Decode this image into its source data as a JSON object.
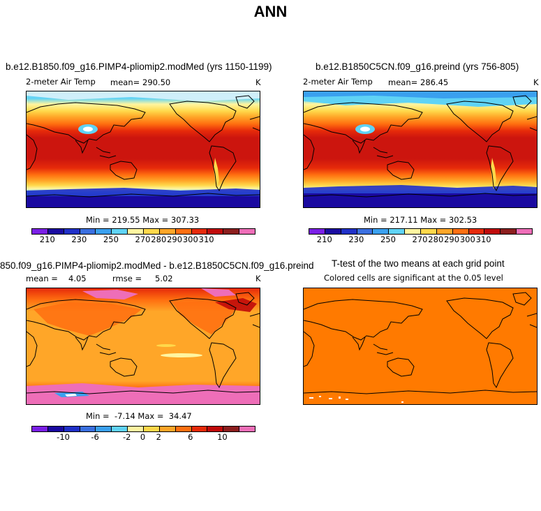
{
  "main_title": "ANN",
  "units": "K",
  "panels": {
    "p1": {
      "title": "b.e12.B1850.f09_g16.PIMP4-pliomip2.modMed (yrs 1150-1199)",
      "variable": "2-meter Air Temp",
      "mean_label": "mean=",
      "mean_value": "290.50",
      "units": "K",
      "minmax": "Min = 219.55 Max = 307.33"
    },
    "p2": {
      "title": "b.e12.B1850C5CN.f09_g16.preind (yrs 756-805)",
      "variable": "2-meter Air Temp",
      "mean_label": "mean=",
      "mean_value": "286.45",
      "units": "K",
      "minmax": "Min = 217.11 Max = 302.53"
    },
    "p3": {
      "title": "850.f09_g16.PIMP4-pliomip2.modMed - b.e12.B1850C5CN.f09_g16.preind",
      "mean_label": "mean =",
      "mean_value": "4.05",
      "rmse_label": "rmse =",
      "rmse_value": "5.02",
      "units": "K",
      "minmax": "Min =  -7.14 Max =  34.47"
    },
    "p4": {
      "title": "T-test of the two means at each grid point",
      "subtitle": "Colored cells are significant at the 0.05 level"
    }
  },
  "colorbar_abs": {
    "colors": [
      "#7a1fe6",
      "#1a0aa0",
      "#2030c8",
      "#3a6fe0",
      "#3aa0ef",
      "#5fd3f5",
      "#fff5a0",
      "#ffd84a",
      "#ffa628",
      "#ff6f10",
      "#e62a0a",
      "#c00a0a",
      "#8c1e1e",
      "#ee6eb8"
    ],
    "tick_labels": [
      "210",
      "230",
      "250",
      "270",
      "280",
      "290",
      "300",
      "310"
    ]
  },
  "colorbar_diff": {
    "colors": [
      "#7a1fe6",
      "#1a0aa0",
      "#2030c8",
      "#3a6fe0",
      "#3aa0ef",
      "#5fd3f5",
      "#fff5a0",
      "#ffd84a",
      "#ffa628",
      "#ff6f10",
      "#e62a0a",
      "#c00a0a",
      "#8c1e1e",
      "#ee6eb8"
    ],
    "tick_labels": [
      "-10",
      "-6",
      "-2",
      "0",
      "2",
      "6",
      "10"
    ]
  },
  "ttest_color": "#ff7a00"
}
